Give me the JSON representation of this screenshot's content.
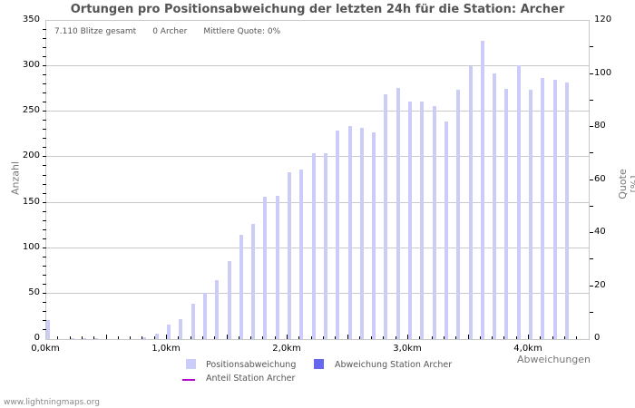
{
  "title": "Ortungen pro Positionsabweichung der letzten 24h für die Station: Archer",
  "stats": {
    "total": "7.110 Blitze gesamt",
    "station": "0 Archer",
    "quote": "Mittlere Quote: 0%"
  },
  "axes": {
    "left_title": "Anzahl",
    "right_title": "Quote [%]",
    "x_title": "Abweichungen",
    "left_ticks": [
      "0",
      "50",
      "100",
      "150",
      "200",
      "250",
      "300",
      "350"
    ],
    "right_ticks": [
      "0",
      "20",
      "40",
      "60",
      "80",
      "100",
      "120"
    ],
    "x_ticks": [
      "0,0km",
      "1,0km",
      "2,0km",
      "3,0km",
      "4,0km"
    ]
  },
  "legend": {
    "items": [
      {
        "label": "Positionsabweichung",
        "color": "#ccccf8",
        "type": "box"
      },
      {
        "label": "Abweichung Station Archer",
        "color": "#6666ee",
        "type": "box"
      },
      {
        "label": "Anteil Station Archer",
        "color": "#b400d0",
        "type": "line"
      }
    ]
  },
  "footer": "www.lightningmaps.org",
  "colors": {
    "bar": "#ccccf8",
    "station_bar": "#6666ee",
    "ratio_line": "#b400d0",
    "grid": "#c8c8c8",
    "title": "#555555"
  },
  "chart_data": {
    "type": "bar",
    "title": "Ortungen pro Positionsabweichung der letzten 24h für die Station: Archer",
    "xlabel": "Abweichungen",
    "ylabel": "Anzahl",
    "y2label": "Quote [%]",
    "ylim": [
      0,
      350
    ],
    "y2lim": [
      0,
      120
    ],
    "grid": true,
    "legend_position": "bottom",
    "categories": [
      "0.0",
      "0.1",
      "0.2",
      "0.3",
      "0.4",
      "0.5",
      "0.6",
      "0.7",
      "0.8",
      "0.9",
      "1.0",
      "1.1",
      "1.2",
      "1.3",
      "1.4",
      "1.5",
      "1.6",
      "1.7",
      "1.8",
      "1.9",
      "2.0",
      "2.1",
      "2.2",
      "2.3",
      "2.4",
      "2.5",
      "2.6",
      "2.7",
      "2.8",
      "2.9",
      "3.0",
      "3.1",
      "3.2",
      "3.3",
      "3.4",
      "3.5",
      "3.6",
      "3.7",
      "3.8",
      "3.9",
      "4.0",
      "4.1",
      "4.2",
      "4.3"
    ],
    "series": [
      {
        "name": "Positionsabweichung",
        "values": [
          21,
          0,
          1,
          1,
          1,
          0,
          0,
          0,
          2,
          6,
          16,
          22,
          39,
          51,
          65,
          86,
          115,
          127,
          157,
          158,
          183,
          186,
          204,
          204,
          229,
          234,
          232,
          227,
          269,
          276,
          261,
          261,
          256,
          239,
          274,
          300,
          328,
          292,
          275,
          301,
          274,
          287,
          285,
          282
        ]
      },
      {
        "name": "Abweichung Station Archer",
        "values": [
          0,
          0,
          0,
          0,
          0,
          0,
          0,
          0,
          0,
          0,
          0,
          0,
          0,
          0,
          0,
          0,
          0,
          0,
          0,
          0,
          0,
          0,
          0,
          0,
          0,
          0,
          0,
          0,
          0,
          0,
          0,
          0,
          0,
          0,
          0,
          0,
          0,
          0,
          0,
          0,
          0,
          0,
          0,
          0
        ]
      },
      {
        "name": "Anteil Station Archer",
        "axis": "right",
        "values": [
          0,
          0,
          0,
          0,
          0,
          0,
          0,
          0,
          0,
          0,
          0,
          0,
          0,
          0,
          0,
          0,
          0,
          0,
          0,
          0,
          0,
          0,
          0,
          0,
          0,
          0,
          0,
          0,
          0,
          0,
          0,
          0,
          0,
          0,
          0,
          0,
          0,
          0,
          0,
          0,
          0,
          0,
          0,
          0
        ]
      }
    ]
  }
}
